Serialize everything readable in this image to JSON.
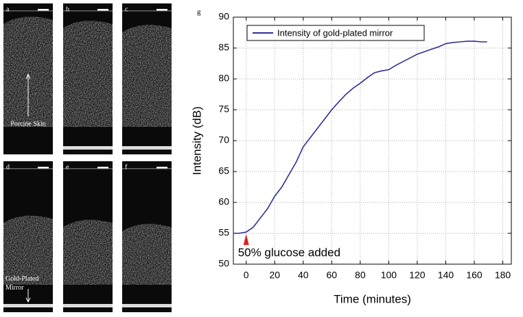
{
  "image_panels": [
    {
      "label": "a",
      "annotation": "Porcine Skin"
    },
    {
      "label": "b"
    },
    {
      "label": "c"
    },
    {
      "label": "d",
      "annotation": "Gold-Plated Mirror"
    },
    {
      "label": "e"
    },
    {
      "label": "f"
    }
  ],
  "chart_data": {
    "type": "line",
    "panel_label": "g",
    "xlabel": "Time (minutes)",
    "ylabel": "Intensity (dB)",
    "x": [
      -9,
      -5,
      0,
      5,
      10,
      15,
      20,
      25,
      30,
      35,
      40,
      45,
      50,
      55,
      60,
      65,
      70,
      75,
      80,
      85,
      90,
      95,
      100,
      105,
      110,
      115,
      120,
      125,
      130,
      135,
      140,
      145,
      150,
      155,
      160,
      165,
      169
    ],
    "series": [
      {
        "name": "Intensity of gold-plated mirror",
        "color": "#2b2f99",
        "values": [
          55,
          55,
          55.2,
          56,
          57.5,
          59,
          61,
          62.5,
          64.5,
          66.5,
          69,
          70.5,
          72,
          73.5,
          75,
          76.3,
          77.5,
          78.5,
          79.3,
          80.2,
          81,
          81.3,
          81.5,
          82.2,
          82.8,
          83.4,
          84,
          84.4,
          84.8,
          85.2,
          85.7,
          85.9,
          86,
          86.1,
          86.1,
          86,
          86
        ]
      }
    ],
    "xlim": [
      -9,
      186
    ],
    "ylim": [
      50,
      90
    ],
    "xticks": [
      0,
      20,
      40,
      60,
      80,
      100,
      120,
      140,
      160,
      180
    ],
    "yticks": [
      50,
      55,
      60,
      65,
      70,
      75,
      80,
      85,
      90
    ],
    "grid": true,
    "legend": "upper left",
    "annotation": {
      "text": "50% glucose added",
      "x": 0,
      "color": "#e02020"
    }
  }
}
